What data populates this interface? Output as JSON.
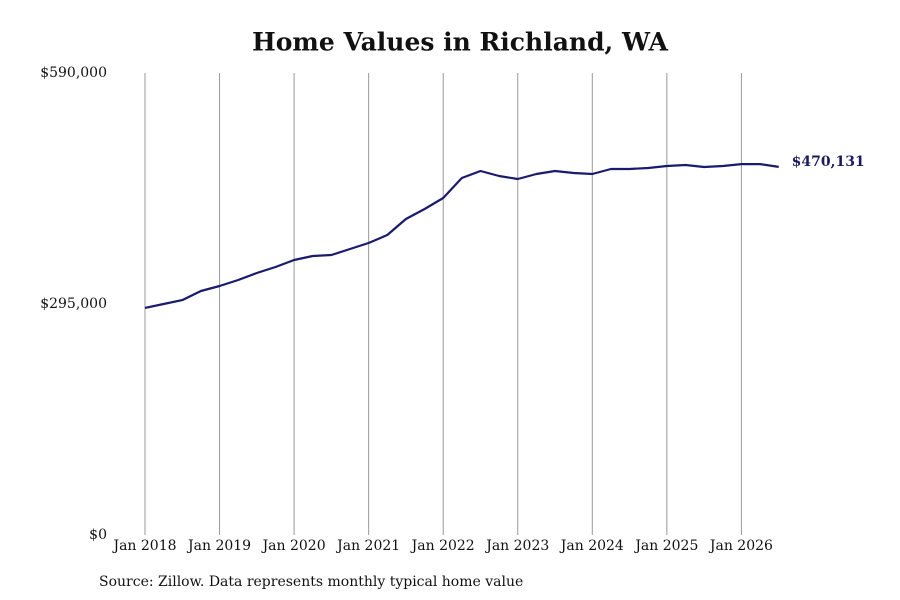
{
  "chart_data": {
    "type": "line",
    "title": "Home Values in Richland, WA",
    "caption": "Source: Zillow. Data represents monthly typical home value",
    "x": [
      "Jan 2018",
      "Apr 2018",
      "Jul 2018",
      "Oct 2018",
      "Jan 2019",
      "Apr 2019",
      "Jul 2019",
      "Oct 2019",
      "Jan 2020",
      "Apr 2020",
      "Jul 2020",
      "Oct 2020",
      "Jan 2021",
      "Apr 2021",
      "Jul 2021",
      "Oct 2021",
      "Jan 2022",
      "Apr 2022",
      "Jul 2022",
      "Oct 2022",
      "Jan 2023",
      "Apr 2023",
      "Jul 2023",
      "Oct 2023",
      "Jan 2024",
      "Apr 2024",
      "Jul 2024",
      "Oct 2024",
      "Jan 2025",
      "Apr 2025",
      "Jul 2025",
      "Oct 2025",
      "Jan 2026",
      "Apr 2026",
      "Jul 2026"
    ],
    "series": [
      {
        "color": "#1a1a6e",
        "values": [
          290000,
          295000,
          300000,
          311600,
          318000,
          325600,
          334600,
          342300,
          351200,
          356300,
          357600,
          365200,
          372900,
          383100,
          403500,
          416300,
          430400,
          455900,
          464800,
          458400,
          454600,
          461000,
          464800,
          462300,
          461000,
          467400,
          467400,
          468700,
          471200,
          472500,
          470000,
          471200,
          473700,
          473700,
          470131
        ],
        "value_labels": [
          null,
          null,
          null,
          null,
          null,
          null,
          null,
          null,
          null,
          null,
          null,
          null,
          null,
          null,
          null,
          null,
          null,
          null,
          null,
          null,
          null,
          null,
          null,
          null,
          null,
          null,
          null,
          null,
          null,
          null,
          null,
          null,
          null,
          null,
          "$470,131"
        ]
      }
    ],
    "xlim": [
      "Jan 2018",
      "Jul 2026"
    ],
    "xticks": [
      "Jan 2018",
      "Jan 2019",
      "Jan 2020",
      "Jan 2021",
      "Jan 2022",
      "Jan 2023",
      "Jan 2024",
      "Jan 2025",
      "Jan 2026"
    ],
    "ylim": [
      0,
      590000
    ],
    "yticks": [
      {
        "value": 0,
        "label": "$0"
      },
      {
        "value": 295000,
        "label": "$295,000"
      },
      {
        "value": 590000,
        "label": "$590,000"
      }
    ],
    "grid": "x"
  }
}
